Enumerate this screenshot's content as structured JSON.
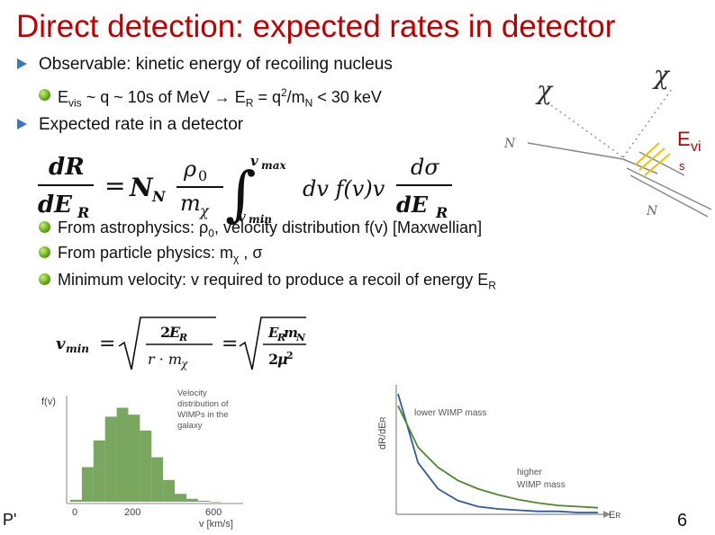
{
  "title": "Direct detection: expected rates in detector",
  "bullets": {
    "observable": "Observable: kinetic energy of recoiling nucleus",
    "evis": {
      "e": "E",
      "sub_vis": "vis",
      "mid": " ~ q ~ 10s of MeV → E",
      "sub_r": "R",
      "eq": " = q",
      "sup2": "2",
      "div": "/m",
      "sub_n": "N",
      "tail": " < 30 keV"
    },
    "expected": "Expected rate in a detector",
    "astro": {
      "pre": "From astrophysics: ρ",
      "sub0": "0",
      "post": ", velocity distribution f(v) [Maxwellian]"
    },
    "particle": {
      "pre": "From particle physics: m",
      "subchi": "χ",
      "post": " , σ"
    },
    "minvel": {
      "pre": "Minimum velocity: v required to produce a recoil of energy E",
      "subr": "R"
    }
  },
  "diagram": {
    "chi_in": "χ",
    "chi_out": "χ",
    "n_in": "N",
    "n_out": "N",
    "evis_e": "E",
    "evis_vi": "vi",
    "evis_s": "s"
  },
  "plot_fv": {
    "ylabel": "f(v)",
    "caption": [
      "Velocity",
      "distribution of",
      "WIMPs in the",
      "galaxy"
    ],
    "x_ticks": [
      "0",
      "200",
      "600"
    ],
    "xlabel": "v [km/s]"
  },
  "plot_rate": {
    "ylabel": "dR/dE",
    "ylabel_sub": "R",
    "lower_label": "lower WIMP mass",
    "higher_label": [
      "higher",
      "WIMP mass"
    ],
    "xlabel": "E",
    "xlabel_sub": "R"
  },
  "footer": "P'",
  "page_number": "6",
  "colors": {
    "title": "#c00000",
    "bullet_triangle": "#3a78c4",
    "bullet_dot": "#5ca80f",
    "curve_green": "#4d8a2a",
    "curve_blue": "#2f5aa8"
  },
  "chart_data": [
    {
      "type": "bar",
      "title": "Velocity distribution of WIMPs in the galaxy",
      "xlabel": "v [km/s]",
      "ylabel": "f(v)",
      "categories": [
        "0",
        "50",
        "100",
        "150",
        "200",
        "250",
        "300",
        "350",
        "400",
        "450",
        "500",
        "550",
        "600"
      ],
      "values": [
        0.02,
        0.35,
        0.62,
        0.86,
        0.95,
        0.88,
        0.72,
        0.45,
        0.22,
        0.08,
        0.03,
        0.01,
        0.0
      ],
      "ylim": [
        0,
        1
      ],
      "xlim": [
        0,
        650
      ]
    },
    {
      "type": "line",
      "xlabel": "E_R",
      "ylabel": "dR/dE_R",
      "x": [
        0,
        1,
        2,
        3,
        4,
        5,
        6,
        7,
        8,
        9,
        10
      ],
      "series": [
        {
          "name": "lower WIMP mass",
          "values": [
            1.0,
            0.42,
            0.2,
            0.1,
            0.05,
            0.03,
            0.02,
            0.01,
            0.01,
            0.0,
            0.0
          ]
        },
        {
          "name": "higher WIMP mass",
          "values": [
            0.9,
            0.55,
            0.38,
            0.27,
            0.2,
            0.15,
            0.11,
            0.08,
            0.06,
            0.05,
            0.04
          ]
        }
      ],
      "ylim": [
        0,
        1
      ]
    }
  ]
}
